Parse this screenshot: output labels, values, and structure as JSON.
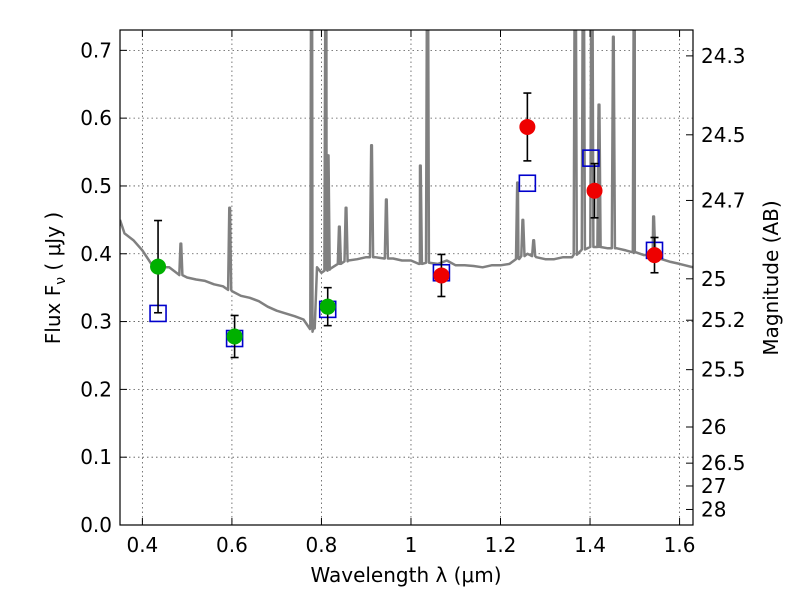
{
  "chart_data": {
    "type": "scatter",
    "xlabel": "Wavelength  λ (μm)",
    "ylabel": "Flux  F",
    "ylabel_sub": "ν",
    "ylabel_unit": "  ( μJy )",
    "y2label": "Magnitude (AB)",
    "xlim": [
      0.35,
      1.63
    ],
    "ylim": [
      0.0,
      0.73
    ],
    "grid": true,
    "x_ticks": [
      0.4,
      0.6,
      0.8,
      1.0,
      1.2,
      1.4,
      1.6
    ],
    "x_tick_labels": [
      "0.4",
      "0.6",
      "0.8",
      "1",
      "1.2",
      "1.4",
      "1.6"
    ],
    "y_ticks": [
      0.0,
      0.1,
      0.2,
      0.3,
      0.4,
      0.5,
      0.6,
      0.7
    ],
    "y_tick_labels": [
      "0.0",
      "0.1",
      "0.2",
      "0.3",
      "0.4",
      "0.5",
      "0.6",
      "0.7"
    ],
    "mag_ticks": [
      24.3,
      24.5,
      24.7,
      25,
      25.2,
      25.5,
      26,
      26.5,
      27,
      28
    ],
    "mag_tick_labels": [
      "24.3",
      "24.5",
      "24.7",
      "25",
      "25.2",
      "25.5",
      "26",
      "26.5",
      "27",
      "28"
    ],
    "colors": {
      "spectrum": "#808080",
      "optical": "#00b000",
      "infrared": "#ee0000",
      "model": "#0000cc",
      "errorbar": "#000000",
      "grid": "#555555"
    },
    "observed_optical": [
      {
        "x": 0.435,
        "y": 0.381,
        "err": 0.068
      },
      {
        "x": 0.606,
        "y": 0.278,
        "err": 0.031
      },
      {
        "x": 0.814,
        "y": 0.322,
        "err": 0.028
      }
    ],
    "observed_infrared": [
      {
        "x": 1.068,
        "y": 0.368,
        "err": 0.031
      },
      {
        "x": 1.26,
        "y": 0.587,
        "err": 0.05
      },
      {
        "x": 1.41,
        "y": 0.493,
        "err": 0.04
      },
      {
        "x": 1.544,
        "y": 0.398,
        "err": 0.026
      }
    ],
    "model_photometry": [
      {
        "x": 0.435,
        "y": 0.312
      },
      {
        "x": 0.606,
        "y": 0.275
      },
      {
        "x": 0.814,
        "y": 0.318
      },
      {
        "x": 1.068,
        "y": 0.372
      },
      {
        "x": 1.26,
        "y": 0.504
      },
      {
        "x": 1.402,
        "y": 0.541
      },
      {
        "x": 1.544,
        "y": 0.405
      }
    ],
    "spectrum": {
      "continuum": [
        [
          0.35,
          0.45
        ],
        [
          0.36,
          0.43
        ],
        [
          0.38,
          0.42
        ],
        [
          0.4,
          0.405
        ],
        [
          0.42,
          0.385
        ],
        [
          0.44,
          0.38
        ],
        [
          0.46,
          0.38
        ],
        [
          0.48,
          0.37
        ],
        [
          0.5,
          0.365
        ],
        [
          0.52,
          0.362
        ],
        [
          0.54,
          0.36
        ],
        [
          0.56,
          0.355
        ],
        [
          0.58,
          0.352
        ],
        [
          0.6,
          0.345
        ],
        [
          0.62,
          0.338
        ],
        [
          0.64,
          0.335
        ],
        [
          0.66,
          0.33
        ],
        [
          0.68,
          0.322
        ],
        [
          0.7,
          0.316
        ],
        [
          0.72,
          0.312
        ],
        [
          0.74,
          0.308
        ],
        [
          0.76,
          0.303
        ],
        [
          0.775,
          0.295
        ],
        [
          0.78,
          0.285
        ],
        [
          0.785,
          0.29
        ],
        [
          0.79,
          0.38
        ],
        [
          0.8,
          0.372
        ],
        [
          0.82,
          0.378
        ],
        [
          0.84,
          0.385
        ],
        [
          0.86,
          0.39
        ],
        [
          0.88,
          0.392
        ],
        [
          0.9,
          0.395
        ],
        [
          0.92,
          0.395
        ],
        [
          0.94,
          0.393
        ],
        [
          0.96,
          0.393
        ],
        [
          0.98,
          0.39
        ],
        [
          1.0,
          0.39
        ],
        [
          1.02,
          0.385
        ],
        [
          1.04,
          0.387
        ],
        [
          1.06,
          0.385
        ],
        [
          1.08,
          0.39
        ],
        [
          1.1,
          0.383
        ],
        [
          1.12,
          0.383
        ],
        [
          1.14,
          0.382
        ],
        [
          1.16,
          0.38
        ],
        [
          1.18,
          0.383
        ],
        [
          1.2,
          0.383
        ],
        [
          1.22,
          0.385
        ],
        [
          1.24,
          0.393
        ],
        [
          1.26,
          0.4
        ],
        [
          1.28,
          0.395
        ],
        [
          1.3,
          0.392
        ],
        [
          1.32,
          0.392
        ],
        [
          1.34,
          0.395
        ],
        [
          1.36,
          0.395
        ],
        [
          1.38,
          0.405
        ],
        [
          1.4,
          0.41
        ],
        [
          1.42,
          0.41
        ],
        [
          1.44,
          0.408
        ],
        [
          1.46,
          0.408
        ],
        [
          1.48,
          0.405
        ],
        [
          1.5,
          0.402
        ],
        [
          1.52,
          0.398
        ],
        [
          1.54,
          0.4
        ],
        [
          1.56,
          0.392
        ],
        [
          1.58,
          0.388
        ],
        [
          1.6,
          0.385
        ],
        [
          1.63,
          0.38
        ]
      ],
      "lines": [
        [
          0.486,
          0.415
        ],
        [
          0.595,
          0.468
        ],
        [
          0.778,
          0.9
        ],
        [
          0.81,
          0.9
        ],
        [
          0.815,
          0.545
        ],
        [
          0.84,
          0.44
        ],
        [
          0.855,
          0.468
        ],
        [
          0.912,
          0.56
        ],
        [
          0.945,
          0.48
        ],
        [
          1.021,
          0.53
        ],
        [
          1.037,
          0.9
        ],
        [
          1.238,
          0.505
        ],
        [
          1.25,
          0.45
        ],
        [
          1.274,
          0.42
        ],
        [
          1.367,
          0.9
        ],
        [
          1.385,
          0.9
        ],
        [
          1.404,
          0.9
        ],
        [
          1.42,
          0.62
        ],
        [
          1.452,
          0.72
        ],
        [
          1.499,
          0.9
        ],
        [
          1.542,
          0.455
        ]
      ]
    }
  }
}
